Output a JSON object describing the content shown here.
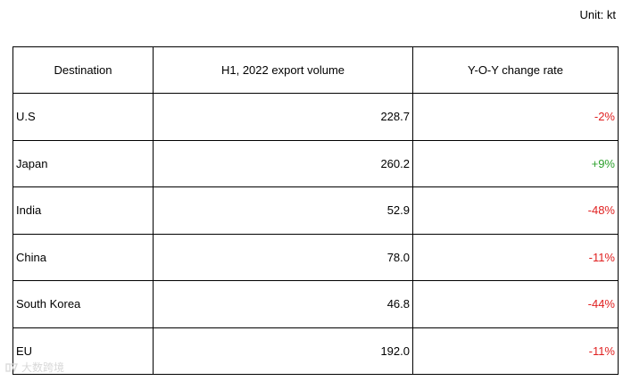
{
  "unit_label": "Unit: kt",
  "watermark_text": "大数跨境",
  "colors": {
    "negative": "#e02020",
    "positive": "#2ca02c",
    "border": "#000000"
  },
  "chart_data": {
    "type": "table",
    "columns": [
      "Destination",
      "H1, 2022 export volume",
      "Y-O-Y change rate"
    ],
    "rows": [
      {
        "destination": "U.S",
        "volume": "228.7",
        "yoy": "-2%",
        "yoy_value": -2
      },
      {
        "destination": "Japan",
        "volume": "260.2",
        "yoy": "+9%",
        "yoy_value": 9
      },
      {
        "destination": "India",
        "volume": "52.9",
        "yoy": "-48%",
        "yoy_value": -48
      },
      {
        "destination": "China",
        "volume": "78.0",
        "yoy": "-11%",
        "yoy_value": -11
      },
      {
        "destination": "South Korea",
        "volume": "46.8",
        "yoy": "-44%",
        "yoy_value": -44
      },
      {
        "destination": "EU",
        "volume": "192.0",
        "yoy": "-11%",
        "yoy_value": -11
      }
    ]
  }
}
